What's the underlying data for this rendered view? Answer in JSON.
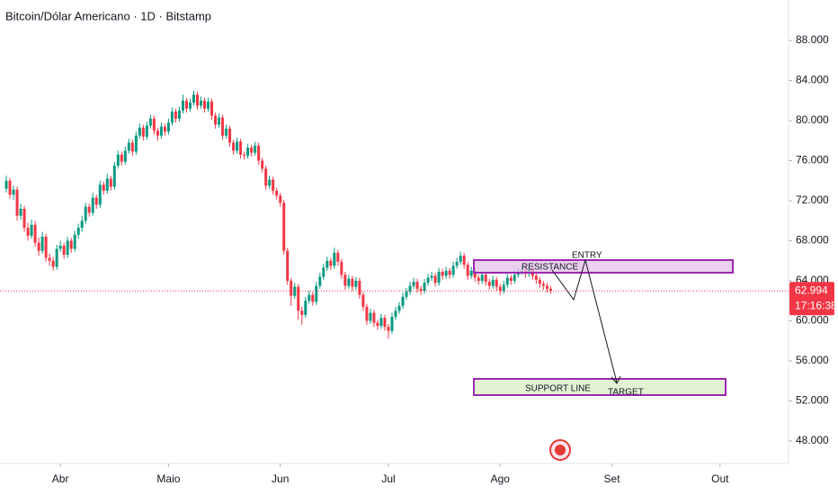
{
  "chart_data": {
    "type": "candlestick",
    "title": "Bitcoin/Dólar Americano · 1D · Bitstamp",
    "up_color": "#089981",
    "down_color": "#f23645",
    "xlim": [
      -1.75,
      217
    ],
    "xticks": [
      {
        "value": 15,
        "label": "Abr"
      },
      {
        "value": 45,
        "label": "Maio"
      },
      {
        "value": 76,
        "label": "Jun"
      },
      {
        "value": 106,
        "label": "Jul"
      },
      {
        "value": 137,
        "label": "Ago"
      },
      {
        "value": 168,
        "label": "Set"
      },
      {
        "value": 198,
        "label": "Out"
      }
    ],
    "ylim": [
      45750,
      92050
    ],
    "yticks": [
      {
        "value": 48000,
        "label": "48.000"
      },
      {
        "value": 52000,
        "label": "52.000"
      },
      {
        "value": 56000,
        "label": "56.000"
      },
      {
        "value": 60000,
        "label": "60.000"
      },
      {
        "value": 64000,
        "label": "64.000"
      },
      {
        "value": 68000,
        "label": "68.000"
      },
      {
        "value": 72000,
        "label": "72.000"
      },
      {
        "value": 76000,
        "label": "76.000"
      },
      {
        "value": 80000,
        "label": "80.000"
      },
      {
        "value": 84000,
        "label": "84.000"
      },
      {
        "value": 88000,
        "label": "88.000"
      }
    ],
    "last_price_label": "62.994",
    "countdown": "17:16:38",
    "annotations": {
      "resistance": "RESISTANCE",
      "entry": "ENTRY",
      "support": "SUPPORT LINE",
      "target": "TARGET"
    },
    "candles": [
      [
        73200,
        74500,
        72800,
        74000
      ],
      [
        74000,
        74300,
        72200,
        72600
      ],
      [
        72600,
        73500,
        72100,
        73100
      ],
      [
        73100,
        73400,
        70000,
        70500
      ],
      [
        70500,
        71700,
        70100,
        71200
      ],
      [
        71200,
        71500,
        68900,
        69300
      ],
      [
        69300,
        69800,
        68000,
        68500
      ],
      [
        68500,
        70100,
        68200,
        69600
      ],
      [
        69600,
        70000,
        67400,
        67800
      ],
      [
        67800,
        68300,
        66500,
        67000
      ],
      [
        67000,
        68900,
        66700,
        68400
      ],
      [
        68400,
        68700,
        65900,
        66300
      ],
      [
        66300,
        66700,
        65500,
        66000
      ],
      [
        66000,
        66400,
        65000,
        65400
      ],
      [
        65400,
        67600,
        65100,
        67200
      ],
      [
        67200,
        68000,
        66900,
        67500
      ],
      [
        67500,
        67800,
        66200,
        66600
      ],
      [
        66600,
        68400,
        66300,
        68000
      ],
      [
        68000,
        68300,
        66800,
        67200
      ],
      [
        67200,
        69000,
        66900,
        68600
      ],
      [
        68600,
        69700,
        68200,
        69300
      ],
      [
        69300,
        70500,
        68900,
        70000
      ],
      [
        70000,
        71800,
        69700,
        71400
      ],
      [
        71400,
        71700,
        70400,
        70800
      ],
      [
        70800,
        72800,
        70500,
        72300
      ],
      [
        72300,
        72600,
        71200,
        71600
      ],
      [
        71600,
        74000,
        71300,
        73600
      ],
      [
        73600,
        73900,
        72600,
        73000
      ],
      [
        73000,
        74700,
        72700,
        74200
      ],
      [
        74200,
        74500,
        73000,
        73400
      ],
      [
        73400,
        75900,
        73100,
        75500
      ],
      [
        75500,
        77000,
        75200,
        76600
      ],
      [
        76600,
        76900,
        75500,
        75900
      ],
      [
        75900,
        77400,
        75600,
        77000
      ],
      [
        77000,
        78200,
        76700,
        77800
      ],
      [
        77800,
        78100,
        76500,
        76900
      ],
      [
        76900,
        78900,
        76600,
        78500
      ],
      [
        78500,
        79700,
        78200,
        79300
      ],
      [
        79300,
        79600,
        78000,
        78400
      ],
      [
        78400,
        79900,
        78100,
        79500
      ],
      [
        79500,
        80600,
        79200,
        80200
      ],
      [
        80200,
        80500,
        78600,
        79000
      ],
      [
        79000,
        79300,
        78000,
        78500
      ],
      [
        78500,
        79800,
        78200,
        79400
      ],
      [
        79400,
        79700,
        78500,
        78900
      ],
      [
        78900,
        80200,
        78600,
        79800
      ],
      [
        79800,
        81300,
        79500,
        80900
      ],
      [
        80900,
        81200,
        79800,
        80200
      ],
      [
        80200,
        81400,
        79900,
        81000
      ],
      [
        81000,
        82600,
        80700,
        82000
      ],
      [
        82000,
        82300,
        80800,
        81200
      ],
      [
        81200,
        82200,
        80900,
        81800
      ],
      [
        81800,
        83000,
        81500,
        82600
      ],
      [
        82600,
        82900,
        81100,
        81500
      ],
      [
        81500,
        82400,
        81200,
        82000
      ],
      [
        82000,
        82300,
        80800,
        81200
      ],
      [
        81200,
        82300,
        80900,
        81900
      ],
      [
        81900,
        82200,
        80100,
        80500
      ],
      [
        80500,
        80800,
        79200,
        79600
      ],
      [
        79600,
        80700,
        79300,
        80300
      ],
      [
        80300,
        80600,
        78100,
        78500
      ],
      [
        78500,
        79600,
        78200,
        79200
      ],
      [
        79200,
        79500,
        77400,
        77800
      ],
      [
        77800,
        78100,
        76600,
        77000
      ],
      [
        77000,
        78300,
        76700,
        77900
      ],
      [
        77900,
        78200,
        76200,
        76600
      ],
      [
        76600,
        76900,
        76100,
        76500
      ],
      [
        76500,
        77700,
        76200,
        77300
      ],
      [
        77300,
        77600,
        76400,
        76800
      ],
      [
        76800,
        77900,
        76500,
        77500
      ],
      [
        77500,
        77800,
        75600,
        76000
      ],
      [
        76000,
        76300,
        74800,
        75200
      ],
      [
        75200,
        75500,
        73100,
        73500
      ],
      [
        73500,
        74500,
        73200,
        74100
      ],
      [
        74100,
        74400,
        72600,
        73000
      ],
      [
        73000,
        73300,
        72100,
        72500
      ],
      [
        72500,
        72800,
        71400,
        71800
      ],
      [
        71800,
        72100,
        66600,
        67000
      ],
      [
        67000,
        67300,
        63600,
        64000
      ],
      [
        64000,
        64300,
        61500,
        62500
      ],
      [
        62500,
        63800,
        62200,
        63400
      ],
      [
        63400,
        63700,
        60100,
        61000
      ],
      [
        61000,
        61400,
        59600,
        60600
      ],
      [
        60600,
        62400,
        60300,
        62000
      ],
      [
        62000,
        63000,
        61700,
        62600
      ],
      [
        62600,
        62900,
        61500,
        61900
      ],
      [
        61900,
        63900,
        61600,
        63500
      ],
      [
        63500,
        64800,
        63200,
        64400
      ],
      [
        64400,
        65700,
        64100,
        65300
      ],
      [
        65300,
        66400,
        65000,
        66000
      ],
      [
        66000,
        66300,
        65100,
        65500
      ],
      [
        65500,
        67300,
        65200,
        66800
      ],
      [
        66800,
        67100,
        65500,
        65900
      ],
      [
        65900,
        66200,
        64200,
        64600
      ],
      [
        64600,
        64900,
        63100,
        63500
      ],
      [
        63500,
        64600,
        63200,
        64200
      ],
      [
        64200,
        64500,
        63000,
        63400
      ],
      [
        63400,
        64400,
        63100,
        64000
      ],
      [
        64000,
        64300,
        62200,
        62600
      ],
      [
        62600,
        62900,
        61000,
        61400
      ],
      [
        61400,
        61700,
        59600,
        60000
      ],
      [
        60000,
        61200,
        59700,
        60800
      ],
      [
        60800,
        61100,
        59400,
        59800
      ],
      [
        59800,
        60100,
        59100,
        59500
      ],
      [
        59500,
        60700,
        59200,
        60300
      ],
      [
        60300,
        60600,
        59000,
        59400
      ],
      [
        59400,
        59700,
        58200,
        59000
      ],
      [
        59000,
        60800,
        58700,
        60400
      ],
      [
        60400,
        61400,
        60100,
        61000
      ],
      [
        61000,
        61900,
        60700,
        61500
      ],
      [
        61500,
        62800,
        61200,
        62400
      ],
      [
        62400,
        63300,
        62100,
        62900
      ],
      [
        62900,
        63900,
        62600,
        63500
      ],
      [
        63500,
        64300,
        63200,
        63900
      ],
      [
        63900,
        64200,
        62800,
        63200
      ],
      [
        63200,
        63500,
        62600,
        63000
      ],
      [
        63000,
        64200,
        62700,
        63800
      ],
      [
        63800,
        64700,
        63500,
        64300
      ],
      [
        64300,
        64900,
        64000,
        64500
      ],
      [
        64500,
        64800,
        63400,
        63800
      ],
      [
        63800,
        65300,
        63500,
        64900
      ],
      [
        64900,
        65200,
        64100,
        64500
      ],
      [
        64500,
        65400,
        64200,
        65000
      ],
      [
        65000,
        65300,
        64200,
        64600
      ],
      [
        64600,
        65900,
        64300,
        65500
      ],
      [
        65500,
        66300,
        65200,
        65900
      ],
      [
        65900,
        66900,
        65600,
        66500
      ],
      [
        66500,
        66800,
        65200,
        65600
      ],
      [
        65600,
        65900,
        64100,
        64500
      ],
      [
        64500,
        65400,
        64200,
        65000
      ],
      [
        65000,
        65300,
        63900,
        64300
      ],
      [
        64300,
        64600,
        63600,
        64000
      ],
      [
        64000,
        65000,
        63700,
        64600
      ],
      [
        64600,
        64900,
        63500,
        63900
      ],
      [
        63900,
        64200,
        63100,
        63500
      ],
      [
        63500,
        64500,
        63200,
        64100
      ],
      [
        64100,
        64400,
        63000,
        63400
      ],
      [
        63400,
        63700,
        62600,
        63000
      ],
      [
        63000,
        64000,
        62700,
        63600
      ],
      [
        63600,
        64700,
        63300,
        64300
      ],
      [
        64300,
        64600,
        63600,
        64000
      ],
      [
        64000,
        65000,
        63700,
        64600
      ],
      [
        64600,
        65300,
        64300,
        64900
      ],
      [
        64900,
        65400,
        64600,
        65000
      ],
      [
        65000,
        65300,
        64300,
        64700
      ],
      [
        64700,
        65500,
        64400,
        65100
      ],
      [
        65100,
        65400,
        64100,
        64500
      ],
      [
        64500,
        64800,
        63700,
        64100
      ],
      [
        64100,
        64400,
        63300,
        63700
      ],
      [
        63700,
        64000,
        63100,
        63500
      ],
      [
        63500,
        63800,
        62800,
        63200
      ],
      [
        63200,
        63500,
        62700,
        62994
      ]
    ]
  }
}
